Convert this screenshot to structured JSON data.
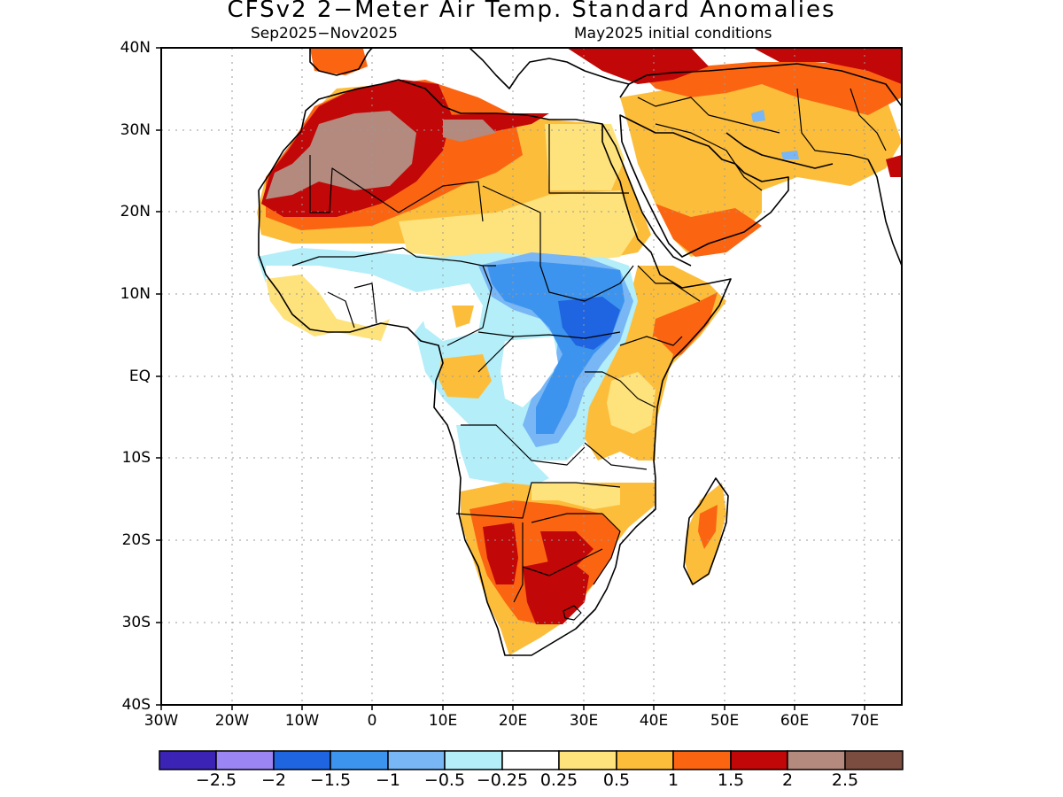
{
  "header": {
    "title": "CFSv2 2−Meter Air Temp. Standard Anomalies",
    "period": "Sep2025−Nov2025",
    "init": "May2025 initial conditions"
  },
  "axes": {
    "lat_labels": [
      "40N",
      "30N",
      "20N",
      "10N",
      "EQ",
      "10S",
      "20S",
      "30S",
      "40S"
    ],
    "lon_labels": [
      "30W",
      "20W",
      "10W",
      "0",
      "10E",
      "20E",
      "30E",
      "40E",
      "50E",
      "60E",
      "70E"
    ]
  },
  "legend": {
    "colors": [
      "#3b24b5",
      "#9b85f4",
      "#1f64e0",
      "#3d94ef",
      "#78b6f5",
      "#b3eef9",
      "#ffffff",
      "#fee27c",
      "#fcbd3b",
      "#fb6511",
      "#c10707",
      "#b48a7e",
      "#7a4d40"
    ],
    "labels": [
      "−2.5",
      "−2",
      "−1.5",
      "−1",
      "−0.5",
      "−0.25",
      "0.25",
      "0.5",
      "1",
      "1.5",
      "2",
      "2.5"
    ]
  }
}
